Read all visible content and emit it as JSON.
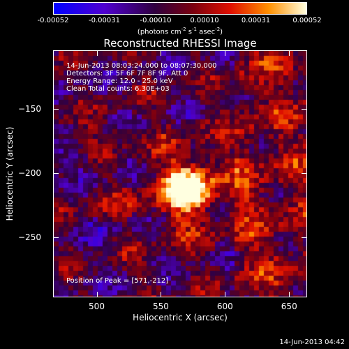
{
  "chart_data": {
    "type": "heatmap",
    "title": "Reconstructed RHESSI Image",
    "xlabel": "Heliocentric X (arcsec)",
    "ylabel": "Heliocentric Y (arcsec)",
    "xlim": [
      466,
      664
    ],
    "ylim": [
      -297,
      -104
    ],
    "xticks": [
      500,
      550,
      600,
      650
    ],
    "yticks": [
      -150,
      -200,
      -250
    ],
    "colorbar": {
      "ticks": [
        "-0.00052",
        "-0.00031",
        "-0.00010",
        "0.00010",
        "0.00031",
        "0.00052"
      ],
      "tick_values": [
        -0.00052,
        -0.00031,
        -0.0001,
        0.0001,
        0.00031,
        0.00052
      ],
      "range": [
        -0.00052,
        0.00052
      ],
      "unit_main": "(photons cm",
      "unit_sup1": "-2",
      "unit_mid": " s",
      "unit_sup2": "-1",
      "unit_mid2": " asec",
      "unit_sup3": "-2",
      "unit_end": ")"
    },
    "info_lines": [
      "14-Jun-2013 08:03:24.000 to 08:07:30.000",
      "Detectors: 3F 5F 6F 7F 8F 9F, Att 0",
      "Energy Range: 12.0 - 25.0 keV",
      "Clean    Total counts: 6.30E+03"
    ],
    "peak_text": "Position of Peak = [571,-212]",
    "peak": [
      571,
      -212
    ]
  },
  "timestamp": "14-Jun-2013 04:42"
}
